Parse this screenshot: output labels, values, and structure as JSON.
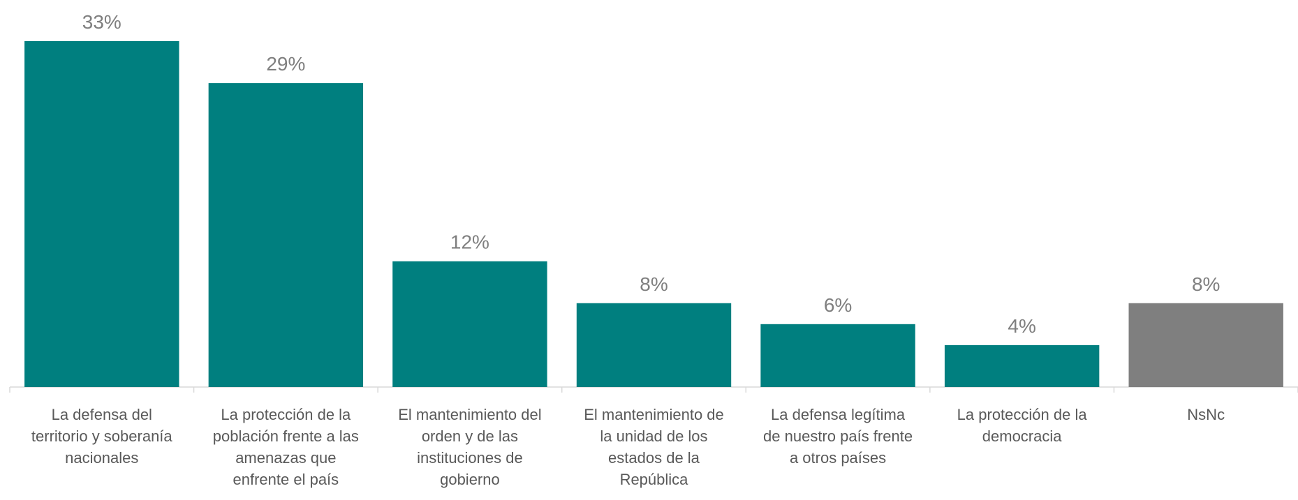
{
  "chart_data": {
    "type": "bar",
    "categories": [
      "La defensa del territorio y soberanía nacionales",
      "La protección de la población frente a las amenazas que enfrente el país",
      "El mantenimiento del orden y de las instituciones de gobierno",
      "El mantenimiento de la unidad de los estados de la República",
      "La defensa legítima de nuestro país frente a otros países",
      "La protección de la democracia",
      "NsNc"
    ],
    "values": [
      33,
      29,
      12,
      8,
      6,
      4,
      8
    ],
    "value_labels": [
      "33%",
      "29%",
      "12%",
      "8%",
      "6%",
      "4%",
      "8%"
    ],
    "colors": [
      "#007f7f",
      "#007f7f",
      "#007f7f",
      "#007f7f",
      "#007f7f",
      "#007f7f",
      "#7f7f7f"
    ]
  }
}
